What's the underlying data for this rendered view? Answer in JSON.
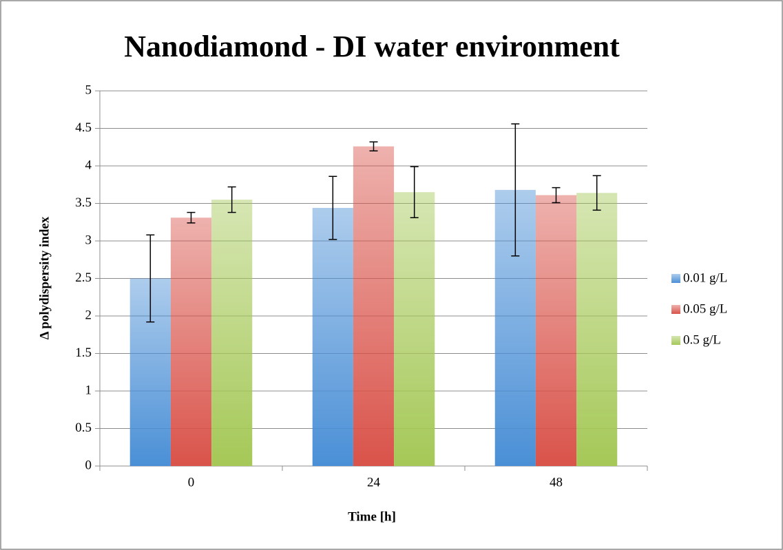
{
  "chart_data": {
    "type": "bar",
    "title": "Nanodiamond - DI water environment",
    "x_label": "Time [h]",
    "y_label": "Δ polydispersity index",
    "categories": [
      "0",
      "24",
      "48"
    ],
    "series": [
      {
        "name": "0.01 g/L",
        "color": "#4a8fd6",
        "values": [
          2.5,
          3.44,
          3.68
        ],
        "errors": [
          0.58,
          0.42,
          0.88
        ]
      },
      {
        "name": "0.05 g/L",
        "color": "#d9534a",
        "values": [
          3.31,
          4.26,
          3.61
        ],
        "errors": [
          0.07,
          0.06,
          0.1
        ]
      },
      {
        "name": "0.5 g/L",
        "color": "#a5c857",
        "values": [
          3.55,
          3.65,
          3.64
        ],
        "errors": [
          0.17,
          0.34,
          0.23
        ]
      }
    ],
    "ylim": [
      0,
      5
    ],
    "yticks": [
      0,
      0.5,
      1,
      1.5,
      2,
      2.5,
      3,
      3.5,
      4,
      4.5,
      5
    ],
    "grid": true,
    "legend": "right"
  }
}
